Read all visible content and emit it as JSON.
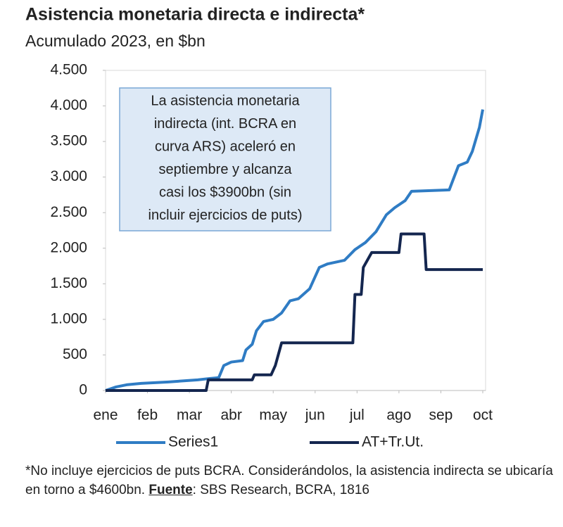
{
  "chart_data": {
    "type": "line",
    "title": "Asistencia monetaria directa e indirecta*",
    "subtitle": "Acumulado 2023, en $bn",
    "annotation": [
      "La asistencia monetaria",
      "indirecta (int. BCRA en",
      "curva ARS) aceleró en",
      "septiembre y alcanza",
      "casi los $3900bn (sin",
      "incluir ejercicios de puts)"
    ],
    "xlim": [
      0,
      9
    ],
    "xticks": [
      {
        "value": 0,
        "label": "ene"
      },
      {
        "value": 1,
        "label": "feb"
      },
      {
        "value": 2,
        "label": "mar"
      },
      {
        "value": 3,
        "label": "abr"
      },
      {
        "value": 4,
        "label": "may"
      },
      {
        "value": 5,
        "label": "jun"
      },
      {
        "value": 6,
        "label": "jul"
      },
      {
        "value": 7,
        "label": "ago"
      },
      {
        "value": 8,
        "label": "sep"
      },
      {
        "value": 9,
        "label": "oct"
      }
    ],
    "ylim": [
      0,
      4500
    ],
    "yticks": [
      0,
      500,
      {
        "value": 1000,
        "label": "1.000"
      },
      {
        "value": 1500,
        "label": "1.500"
      },
      {
        "value": 2000,
        "label": "2.000"
      },
      {
        "value": 2500,
        "label": "2.500"
      },
      {
        "value": 3000,
        "label": "3.000"
      },
      {
        "value": 3500,
        "label": "3.500"
      },
      {
        "value": 4000,
        "label": "4.000"
      },
      {
        "value": 4500,
        "label": "4.500"
      }
    ],
    "series": [
      {
        "name": "Series1",
        "color": "#2f7cc4",
        "x": [
          0,
          0.25,
          0.5,
          0.85,
          1.5,
          2.2,
          2.5,
          2.7,
          2.82,
          3.0,
          3.27,
          3.35,
          3.5,
          3.6,
          3.77,
          4.0,
          4.2,
          4.4,
          4.6,
          4.87,
          5.1,
          5.3,
          5.7,
          5.95,
          6.2,
          6.45,
          6.7,
          6.9,
          7.15,
          7.3,
          8.2,
          8.42,
          8.63,
          8.75,
          8.92,
          9.0
        ],
        "values": [
          0,
          50,
          80,
          100,
          120,
          150,
          170,
          180,
          350,
          400,
          420,
          570,
          650,
          840,
          970,
          1000,
          1090,
          1260,
          1290,
          1430,
          1730,
          1780,
          1830,
          1980,
          2080,
          2230,
          2470,
          2570,
          2670,
          2800,
          2820,
          3160,
          3210,
          3360,
          3700,
          3950
        ]
      },
      {
        "name": "AT+Tr.Ut.",
        "color": "#14264f",
        "x": [
          0,
          2.4,
          2.45,
          3.5,
          3.55,
          3.95,
          4.05,
          4.2,
          5.9,
          5.95,
          6.1,
          6.15,
          6.35,
          7.0,
          7.05,
          7.6,
          7.65,
          9.0
        ],
        "values": [
          0,
          0,
          150,
          150,
          220,
          220,
          350,
          670,
          670,
          1350,
          1350,
          1730,
          1940,
          1940,
          2200,
          2200,
          1700,
          1700
        ]
      }
    ],
    "grid": false,
    "legend": "bottom",
    "note": "*No incluye ejercicios de puts BCRA. Considerándolos, la asistencia indirecta se ubicaría en torno a $4600bn. ",
    "source_label": "Fuente",
    "source": ": SBS Research, BCRA, 1816"
  }
}
